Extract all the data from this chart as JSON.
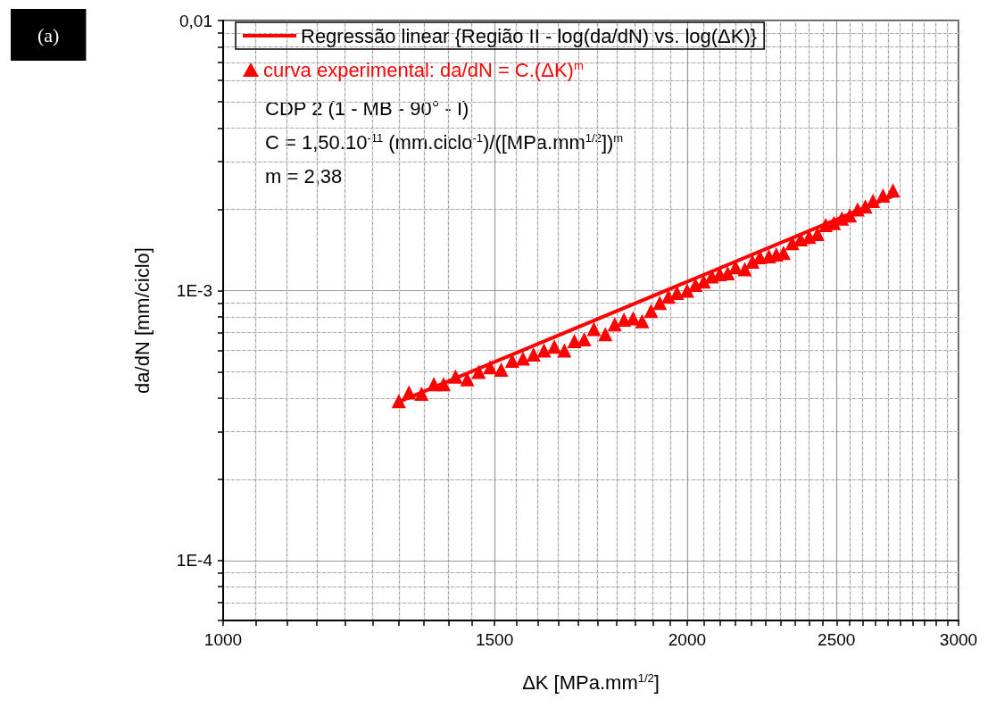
{
  "chart_data": {
    "type": "scatter",
    "xlabel": "ΔK [MPa.mm$^{1/2}$]",
    "ylabel": "da/dN [mm/ciclo]",
    "log": "xy",
    "grid": true,
    "legend": "top",
    "line_style": "solid",
    "xlim": [
      1000,
      3000
    ],
    "xticks": [
      1000,
      {
        "value": 1050,
        "label": null
      },
      {
        "value": 1100,
        "label": null
      },
      {
        "value": 1150,
        "label": null
      },
      {
        "value": 1200,
        "label": null
      },
      {
        "value": 1250,
        "label": null
      },
      {
        "value": 1300,
        "label": null
      },
      {
        "value": 1350,
        "label": null
      },
      {
        "value": 1400,
        "label": null
      },
      {
        "value": 1450,
        "label": null
      },
      1500,
      {
        "value": 1550,
        "label": null
      },
      {
        "value": 1600,
        "label": null
      },
      {
        "value": 1650,
        "label": null
      },
      {
        "value": 1700,
        "label": null
      },
      {
        "value": 1750,
        "label": null
      },
      {
        "value": 1800,
        "label": null
      },
      {
        "value": 1850,
        "label": null
      },
      {
        "value": 1900,
        "label": null
      },
      {
        "value": 1950,
        "label": null
      },
      2000,
      {
        "value": 2050,
        "label": null
      },
      {
        "value": 2100,
        "label": null
      },
      {
        "value": 2150,
        "label": null
      },
      {
        "value": 2200,
        "label": null
      },
      {
        "value": 2250,
        "label": null
      },
      {
        "value": 2300,
        "label": null
      },
      {
        "value": 2350,
        "label": null
      },
      {
        "value": 2400,
        "label": null
      },
      {
        "value": 2450,
        "label": null
      },
      2500,
      {
        "value": 2550,
        "label": null
      },
      {
        "value": 2600,
        "label": null
      },
      {
        "value": 2650,
        "label": null
      },
      {
        "value": 2700,
        "label": null
      },
      {
        "value": 2750,
        "label": null
      },
      {
        "value": 2800,
        "label": null
      },
      {
        "value": 2850,
        "label": null
      },
      {
        "value": 2900,
        "label": null
      },
      {
        "value": 2950,
        "label": null
      },
      3000
    ],
    "ylim": [
      6e-05,
      0.01
    ],
    "yticks": [
      {
        "value": 6e-05,
        "label": null
      },
      {
        "value": 7e-05,
        "label": null
      },
      {
        "value": 8e-05,
        "label": null
      },
      {
        "value": 9e-05,
        "label": null
      },
      {
        "value": 0.0001,
        "label": "1E-4"
      },
      {
        "value": 0.0002,
        "label": null
      },
      {
        "value": 0.0003,
        "label": null
      },
      {
        "value": 0.0004,
        "label": null
      },
      {
        "value": 0.0005,
        "label": null
      },
      {
        "value": 0.0006,
        "label": null
      },
      {
        "value": 0.0007,
        "label": null
      },
      {
        "value": 0.0008,
        "label": null
      },
      {
        "value": 0.0009,
        "label": null
      },
      {
        "value": 0.001,
        "label": "1E-3"
      },
      {
        "value": 0.002,
        "label": null
      },
      {
        "value": 0.003,
        "label": null
      },
      {
        "value": 0.004,
        "label": null
      },
      {
        "value": 0.005,
        "label": null
      },
      {
        "value": 0.006,
        "label": null
      },
      {
        "value": 0.007,
        "label": null
      },
      {
        "value": 0.008,
        "label": null
      },
      {
        "value": 0.009,
        "label": null
      },
      {
        "value": 0.01,
        "label": "0,01"
      }
    ],
    "annotations": [
      "(a)",
      "CDP 2 (1 - MB - 90° - I)",
      "C = 1,50.10$^{-11}$ (mm.ciclo$^{-1}$)/([MPa.mm$^{1/2}$])$^{m}$",
      "m = 2,38"
    ],
    "series": [
      {
        "type": "line",
        "name": "Regressão linear {Região II - log(da/dN) vs. log(ΔK)}",
        "color": "#ff0000",
        "marker": "none",
        "x": [
          1300,
          2730
        ],
        "values": [
          0.000387,
          0.00226
        ]
      },
      {
        "type": "scatter",
        "name": "curva experimental: da/dN = C.(ΔK)$^{m}$",
        "color": "#ff0000",
        "marker": "triangle",
        "x": [
          1300,
          1320,
          1345,
          1370,
          1390,
          1415,
          1440,
          1465,
          1490,
          1515,
          1540,
          1565,
          1590,
          1615,
          1640,
          1665,
          1690,
          1715,
          1740,
          1770,
          1795,
          1820,
          1845,
          1870,
          1895,
          1920,
          1945,
          1970,
          2000,
          2025,
          2050,
          2075,
          2100,
          2125,
          2150,
          2180,
          2205,
          2230,
          2260,
          2285,
          2310,
          2340,
          2370,
          2400,
          2430,
          2460,
          2490,
          2520,
          2550,
          2580,
          2610,
          2640,
          2680,
          2720
        ],
        "values": [
          0.00039,
          0.00042,
          0.000415,
          0.00045,
          0.00045,
          0.00048,
          0.00047,
          0.0005,
          0.00052,
          0.00051,
          0.00055,
          0.00056,
          0.00058,
          0.0006,
          0.00062,
          0.0006,
          0.00065,
          0.00066,
          0.00072,
          0.00069,
          0.00075,
          0.00078,
          0.00079,
          0.00077,
          0.00084,
          0.0009,
          0.00095,
          0.00098,
          0.001,
          0.00105,
          0.00108,
          0.00113,
          0.00115,
          0.00116,
          0.00122,
          0.0012,
          0.00128,
          0.00133,
          0.00134,
          0.00136,
          0.00138,
          0.0015,
          0.00155,
          0.00158,
          0.00162,
          0.00175,
          0.00178,
          0.00185,
          0.0019,
          0.002,
          0.00205,
          0.00215,
          0.00225,
          0.00235
        ]
      }
    ]
  }
}
